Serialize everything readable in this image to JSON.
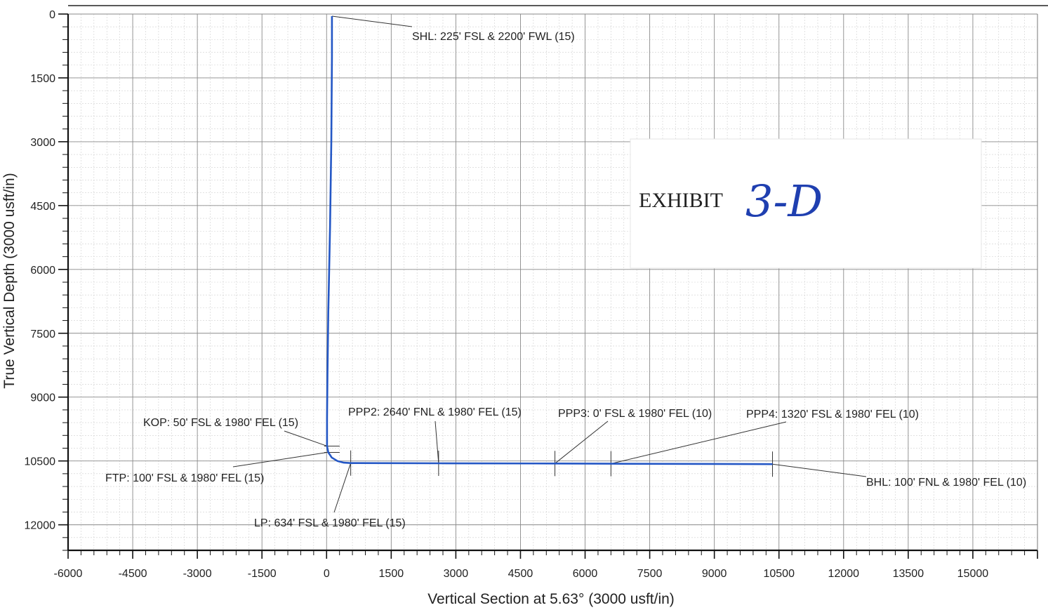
{
  "chart_data": {
    "type": "line",
    "xlabel": "Vertical Section at 5.63° (3000 usft/in)",
    "ylabel": "True Vertical Depth (3000 usft/in)",
    "xlim": [
      -6000,
      16500
    ],
    "ylim": [
      12600,
      0
    ],
    "y_inverted": true,
    "grid": true,
    "x_ticks": [
      "-6000",
      "-4500",
      "-3000",
      "-1500",
      "0",
      "1500",
      "3000",
      "4500",
      "6000",
      "7500",
      "9000",
      "10500",
      "12000",
      "13500",
      "15000"
    ],
    "y_ticks": [
      "0",
      "1500",
      "3000",
      "4500",
      "6000",
      "7500",
      "9000",
      "10500",
      "12000"
    ],
    "series": [
      {
        "color": "#2457c5",
        "x": [
          125,
          125,
          110,
          80,
          40,
          20,
          10,
          10,
          40,
          120,
          250,
          400,
          560,
          2600,
          5300,
          6600,
          10350
        ],
        "y": [
          50,
          1000,
          3000,
          5000,
          7000,
          8500,
          9500,
          10150,
          10300,
          10420,
          10500,
          10540,
          10550,
          10555,
          10560,
          10565,
          10575
        ]
      }
    ],
    "annotations": [
      {
        "label": "SHL: 225' FSL & 2200' FWL (15)",
        "x": 125,
        "y": 50
      },
      {
        "label": "KOP: 50' FSL & 1980' FEL (15)",
        "x": 10,
        "y": 10150
      },
      {
        "label": "FTP: 100' FSL & 1980' FEL (15)",
        "x": 10,
        "y": 10300
      },
      {
        "label": "LP: 634' FSL & 1980' FEL (15)",
        "x": 560,
        "y": 10550
      },
      {
        "label": "PPP2: 2640' FNL & 1980' FEL (15)",
        "x": 2600,
        "y": 10555
      },
      {
        "label": "PPP3: 0' FSL & 1980' FEL (10)",
        "x": 5300,
        "y": 10560
      },
      {
        "label": "PPP4: 1320' FSL & 1980' FEL (10)",
        "x": 6600,
        "y": 10565
      },
      {
        "label": "BHL: 100' FNL & 1980' FEL (10)",
        "x": 10350,
        "y": 10575
      }
    ]
  },
  "exhibit": {
    "label": "EXHIBIT",
    "handwritten": "3-D"
  }
}
